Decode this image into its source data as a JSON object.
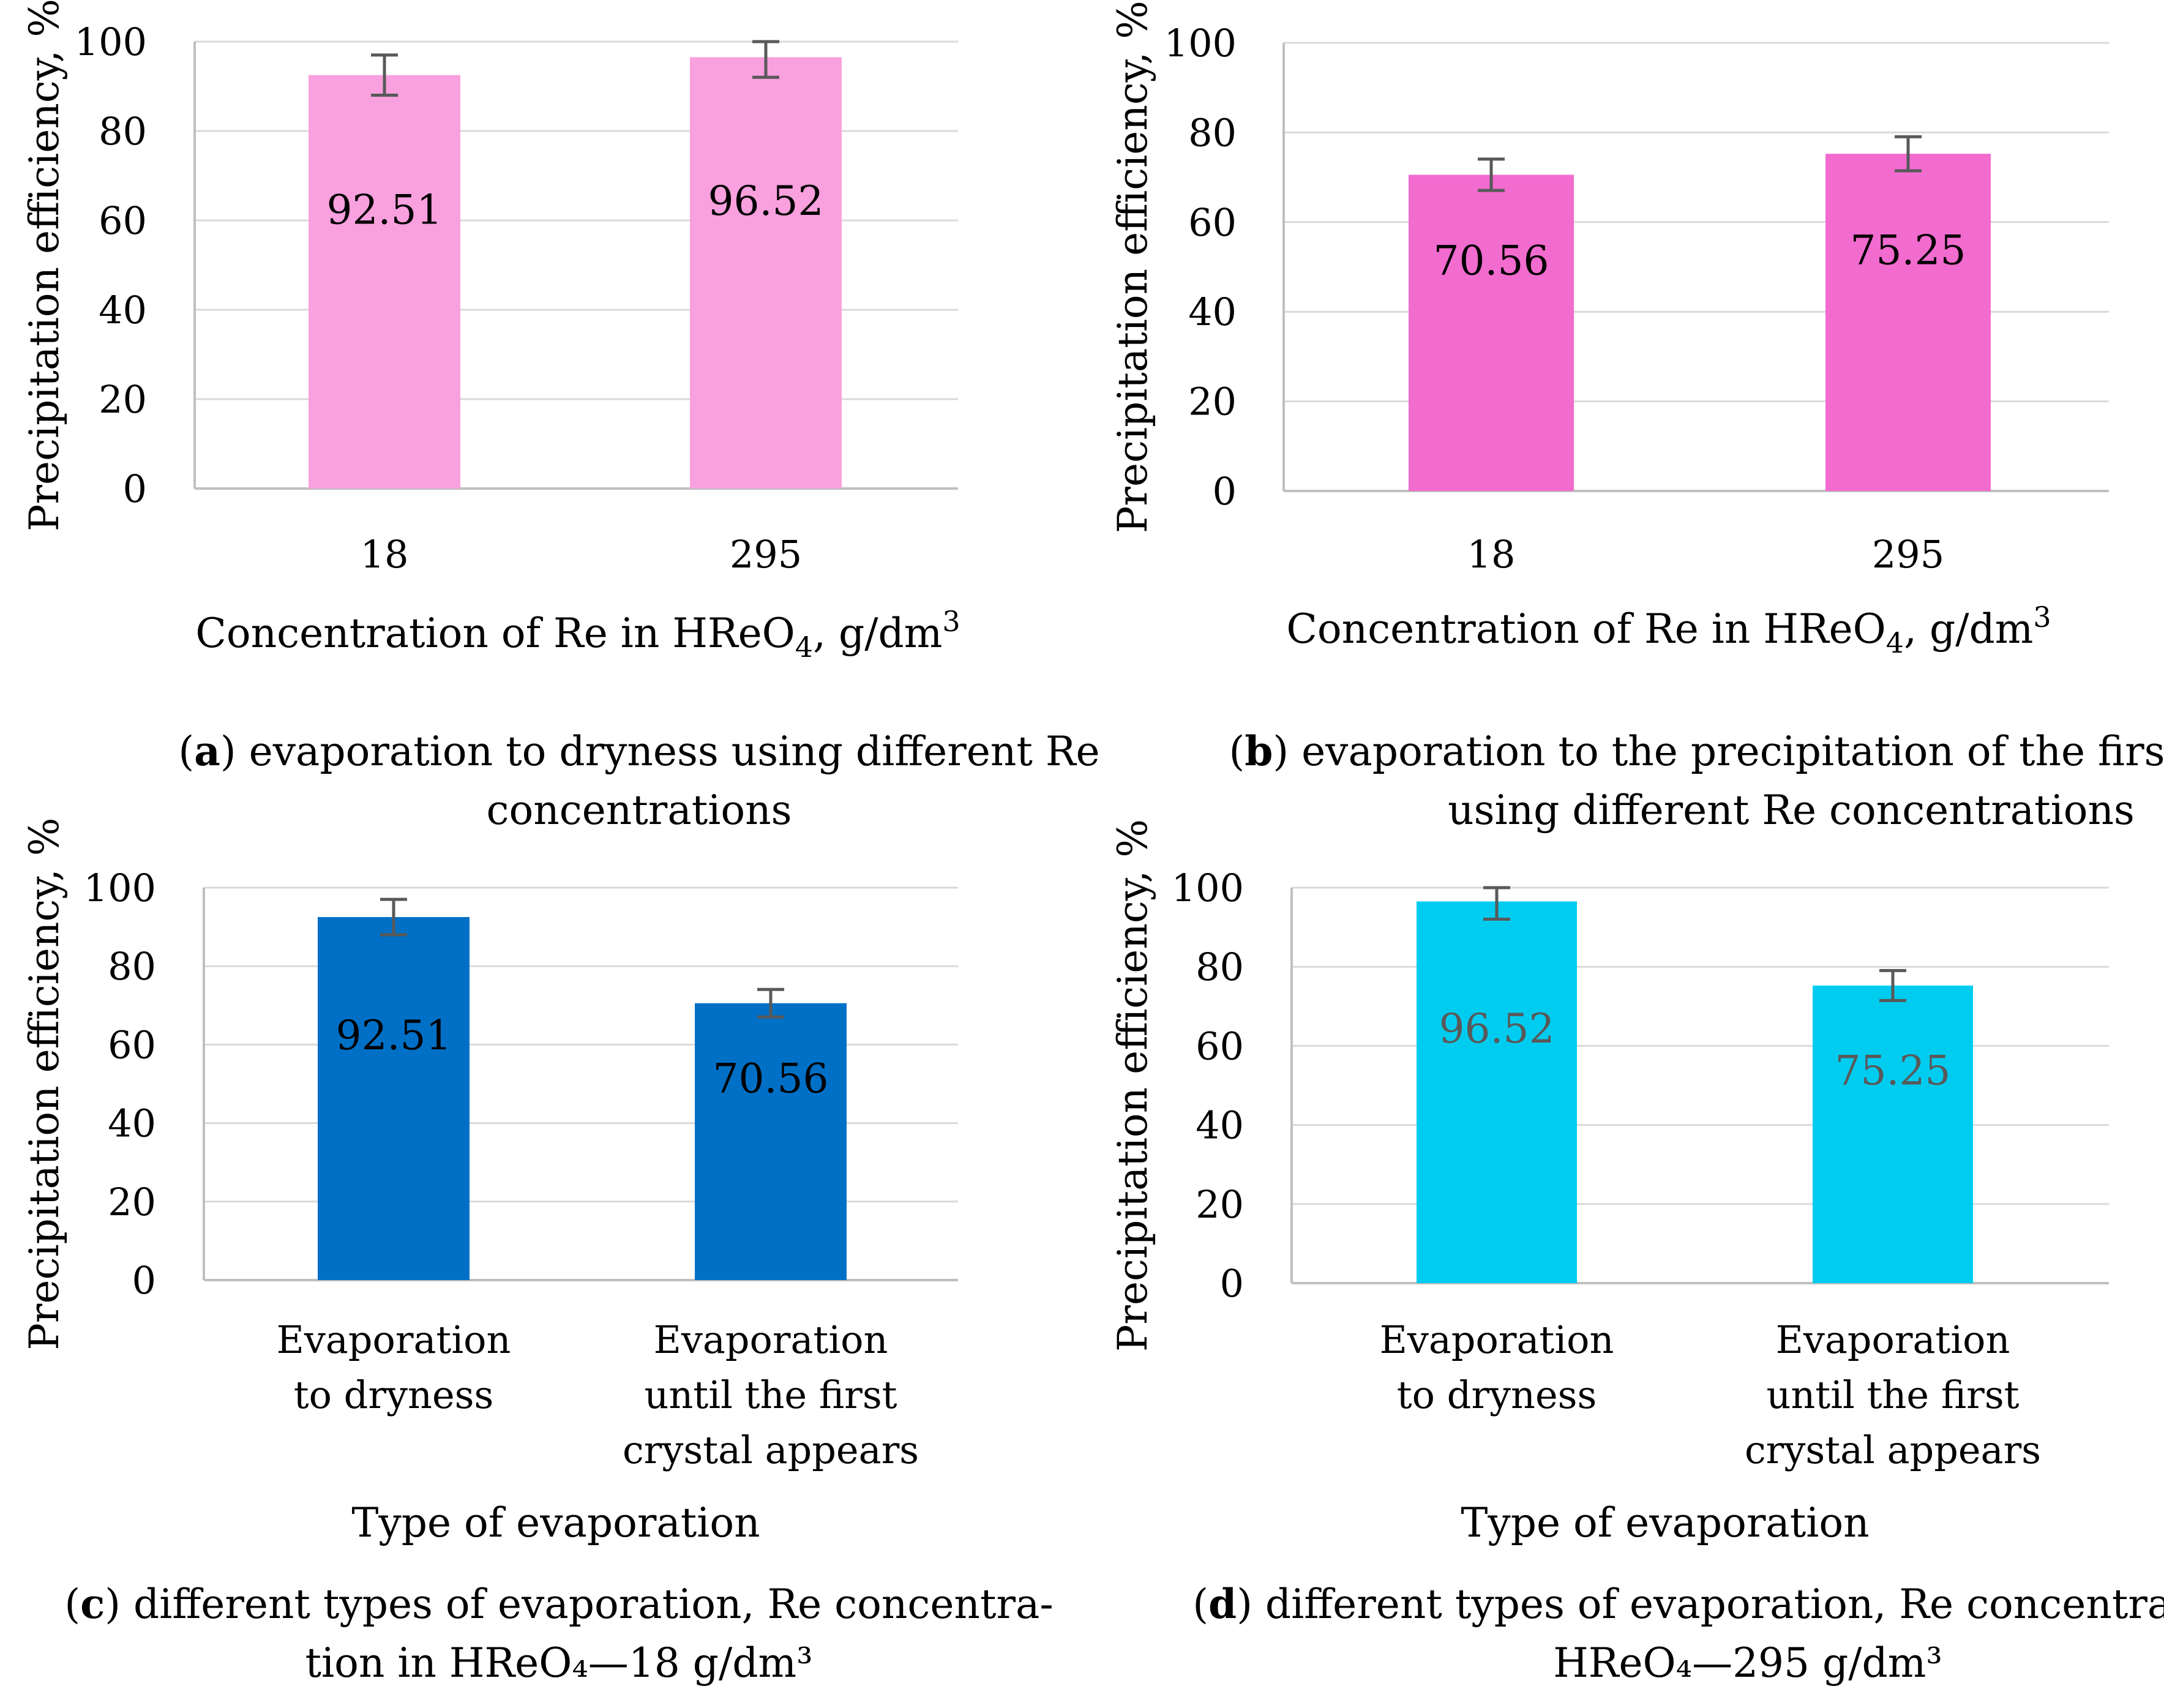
{
  "colors": {
    "pink_light": "#F9A0DE",
    "pink": "#F26BCF",
    "blue": "#0070C6",
    "cyan": "#00CCF0",
    "grid": "#D9D9D9",
    "axis": "#BFBFBF",
    "error_bar": "#595959",
    "label_dark": "#000000",
    "label_gray": "#595959"
  },
  "chart_data": [
    {
      "type": "bar",
      "panel": "a",
      "categories": [
        [
          "18"
        ],
        [
          "295"
        ]
      ],
      "values": [
        92.51,
        96.52
      ],
      "data_labels": [
        "92.51",
        "96.52"
      ],
      "error": [
        4.5,
        4.5
      ],
      "ylim": [
        0,
        100
      ],
      "yticks": [
        0,
        20,
        40,
        60,
        80,
        100
      ],
      "ylabel": "Precipitation efficiency, %",
      "xlabel": {
        "pre": "Concentration of Re in HReO",
        "sub": "4",
        "mid": ", g/dm",
        "sup": "3"
      },
      "caption": {
        "letter": "a",
        "lines": [
          "evaporation to dryness using different Re",
          "concentrations"
        ]
      },
      "bar_color": "pink_light",
      "label_color": "label_dark"
    },
    {
      "type": "bar",
      "panel": "b",
      "categories": [
        [
          "18"
        ],
        [
          "295"
        ]
      ],
      "values": [
        70.56,
        75.25
      ],
      "data_labels": [
        "70.56",
        "75.25"
      ],
      "error": [
        3.5,
        3.8
      ],
      "ylim": [
        0,
        100
      ],
      "yticks": [
        0,
        20,
        40,
        60,
        80,
        100
      ],
      "ylabel": "Precipitation efficiency, %",
      "xlabel": {
        "pre": "Concentration of Re in HReO",
        "sub": "4",
        "mid": ", g/dm",
        "sup": "3"
      },
      "caption": {
        "letter": "b",
        "lines": [
          "evaporation to the precipitation of the first crystals",
          "using different Re concentrations"
        ]
      },
      "bar_color": "pink",
      "label_color": "label_dark"
    },
    {
      "type": "bar",
      "panel": "c",
      "categories": [
        [
          "Evaporation",
          "to dryness"
        ],
        [
          "Evaporation",
          "until the first",
          "crystal appears"
        ]
      ],
      "values": [
        92.51,
        70.56
      ],
      "data_labels": [
        "92.51",
        "70.56"
      ],
      "error": [
        4.5,
        3.5
      ],
      "ylim": [
        0,
        100
      ],
      "yticks": [
        0,
        20,
        40,
        60,
        80,
        100
      ],
      "ylabel": "Precipitation efficiency, %",
      "xlabel": {
        "pre": "Type of evaporation",
        "sub": "",
        "mid": "",
        "sup": ""
      },
      "caption": {
        "letter": "c",
        "lines": [
          "different types of evaporation, Re concentra-",
          "tion in HReO₄—18 g/dm³"
        ]
      },
      "bar_color": "blue",
      "label_color": "label_dark"
    },
    {
      "type": "bar",
      "panel": "d",
      "categories": [
        [
          "Evaporation",
          "to dryness"
        ],
        [
          "Evaporation",
          "until the first",
          "crystal appears"
        ]
      ],
      "values": [
        96.52,
        75.25
      ],
      "data_labels": [
        "96.52",
        "75.25"
      ],
      "error": [
        4.5,
        3.8
      ],
      "ylim": [
        0,
        100
      ],
      "yticks": [
        0,
        20,
        40,
        60,
        80,
        100
      ],
      "ylabel": "Precipitation efficiency, %",
      "xlabel": {
        "pre": "Type of evaporation",
        "sub": "",
        "mid": "",
        "sup": ""
      },
      "caption": {
        "letter": "d",
        "lines": [
          "different types of evaporation, Re concentration in",
          "HReO₄—295 g/dm³"
        ]
      },
      "bar_color": "cyan",
      "label_color": "label_gray"
    }
  ]
}
